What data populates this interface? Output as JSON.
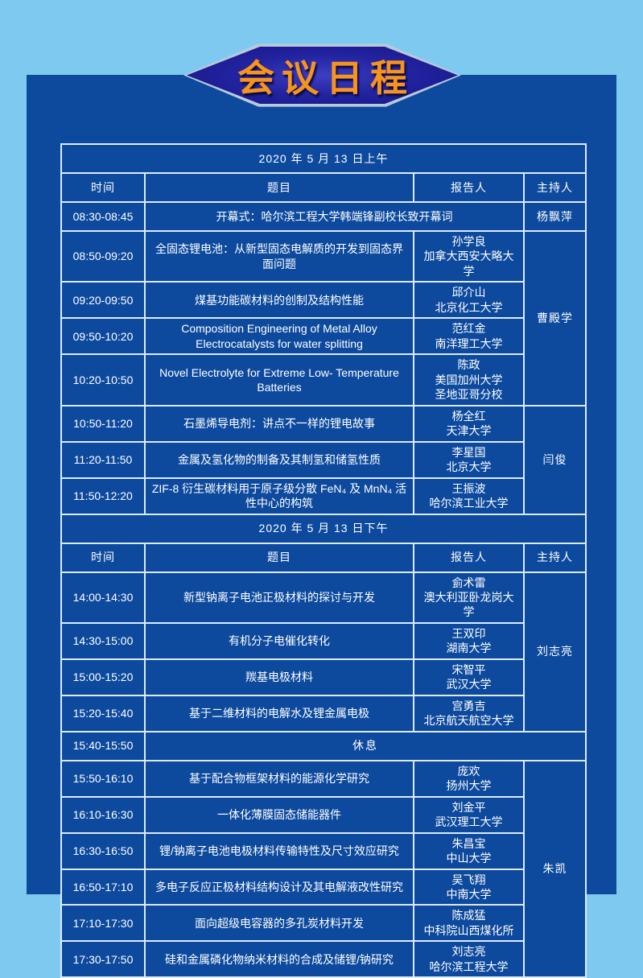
{
  "banner": {
    "title": "会议日程"
  },
  "colors": {
    "page_background": "#7dc9f0",
    "panel_background": "#0d4a9e",
    "table_border": "#dcebf8",
    "banner_fill": "#22239f",
    "banner_edge": "#b9c9d9",
    "title_orange": "#f7941d",
    "text": "#ffffff"
  },
  "table": {
    "sessions": [
      {
        "date_header": "2020 年 5 月 13 日上午",
        "columns": {
          "time": "时间",
          "topic": "题目",
          "speaker": "报告人",
          "host": "主持人"
        },
        "rows": [
          {
            "time": "08:30-08:45",
            "topic": "开幕式：哈尔滨工程大学韩端锋副校长致开幕词",
            "topic_span": 2,
            "host": "杨飘萍",
            "host_span": 1
          },
          {
            "time": "08:50-09:20",
            "topic": "全固态锂电池：从新型固态电解质的开发到固态界面问题",
            "speaker": [
              "孙学良",
              "加拿大西安大略大学"
            ],
            "host": "曹殿学",
            "host_span": 4
          },
          {
            "time": "09:20-09:50",
            "topic": "煤基功能碳材料的创制及结构性能",
            "speaker": [
              "邱介山",
              "北京化工大学"
            ]
          },
          {
            "time": "09:50-10:20",
            "topic": "Composition Engineering of Metal Alloy Electrocatalysts for water splitting",
            "speaker": [
              "范红金",
              "南洋理工大学"
            ]
          },
          {
            "time": "10:20-10:50",
            "topic": "Novel Electrolyte for Extreme Low- Temperature Batteries",
            "speaker": [
              "陈政",
              "美国加州大学",
              "圣地亚哥分校"
            ]
          },
          {
            "time": "10:50-11:20",
            "topic": "石墨烯导电剂：讲点不一样的锂电故事",
            "speaker": [
              "杨全红",
              "天津大学"
            ],
            "host": "闫俊",
            "host_span": 3
          },
          {
            "time": "11:20-11:50",
            "topic": "金属及氢化物的制备及其制氢和储氢性质",
            "speaker": [
              "李星国",
              "北京大学"
            ]
          },
          {
            "time": "11:50-12:20",
            "topic": "ZIF-8 衍生碳材料用于原子级分散 FeN₄ 及 MnN₄ 活性中心的构筑",
            "speaker": [
              "王振波",
              "哈尔滨工业大学"
            ]
          }
        ]
      },
      {
        "date_header": "2020 年 5 月 13 日下午",
        "columns": {
          "time": "时间",
          "topic": "题目",
          "speaker": "报告人",
          "host": "主持人"
        },
        "rows": [
          {
            "time": "14:00-14:30",
            "topic": "新型钠离子电池正极材料的探讨与开发",
            "speaker": [
              "侴术雷",
              "澳大利亚卧龙岗大学"
            ],
            "host": "刘志亮",
            "host_span": 4
          },
          {
            "time": "14:30-15:00",
            "topic": "有机分子电催化转化",
            "speaker": [
              "王双印",
              "湖南大学"
            ]
          },
          {
            "time": "15:00-15:20",
            "topic": "羰基电极材料",
            "speaker": [
              "宋智平",
              "武汉大学"
            ]
          },
          {
            "time": "15:20-15:40",
            "topic": "基于二维材料的电解水及锂金属电极",
            "speaker": [
              "宫勇吉",
              "北京航天航空大学"
            ]
          },
          {
            "time": "15:40-15:50",
            "topic": "休息",
            "topic_span": 3
          },
          {
            "time": "15:50-16:10",
            "topic": "基于配合物框架材料的能源化学研究",
            "speaker": [
              "庞欢",
              "扬州大学"
            ],
            "host": "朱凯",
            "host_span": 6
          },
          {
            "time": "16:10-16:30",
            "topic": "一体化薄膜固态储能器件",
            "speaker": [
              "刘金平",
              "武汉理工大学"
            ]
          },
          {
            "time": "16:30-16:50",
            "topic": "锂/钠离子电池电极材料传输特性及尺寸效应研究",
            "speaker": [
              "朱昌宝",
              "中山大学"
            ]
          },
          {
            "time": "16:50-17:10",
            "topic": "多电子反应正极材料结构设计及其电解液改性研究",
            "speaker": [
              "吴飞翔",
              "中南大学"
            ]
          },
          {
            "time": "17:10-17:30",
            "topic": "面向超级电容器的多孔炭材料开发",
            "speaker": [
              "陈成猛",
              "中科院山西煤化所"
            ]
          },
          {
            "time": "17:30-17:50",
            "topic": "硅和金属磷化物纳米材料的合成及储锂/钠研究",
            "speaker": [
              "刘志亮",
              "哈尔滨工程大学"
            ]
          }
        ]
      }
    ]
  }
}
